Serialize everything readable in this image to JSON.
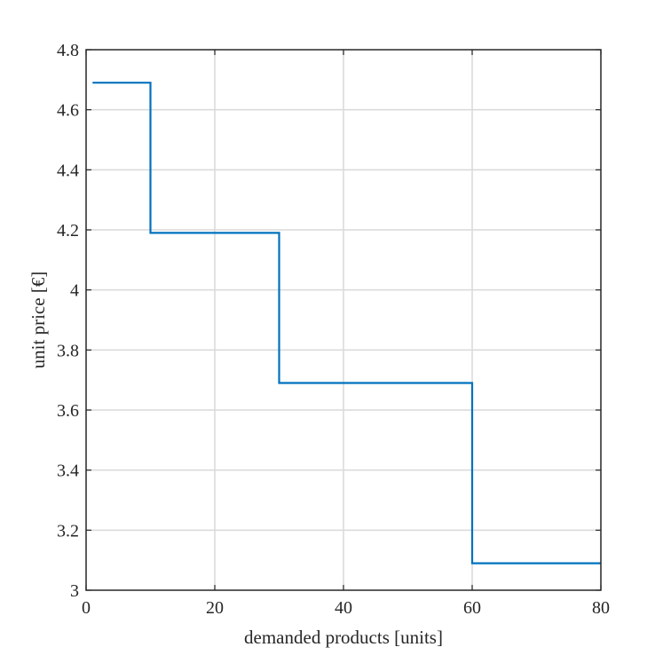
{
  "chart_data": {
    "type": "line",
    "step": "post",
    "title": "",
    "xlabel": "demanded products [units]",
    "ylabel": "unit price [€]",
    "xlim": [
      0,
      80
    ],
    "ylim": [
      3,
      4.8
    ],
    "xticks": [
      0,
      20,
      40,
      60,
      80
    ],
    "xtick_labels": [
      "0",
      "20",
      "40",
      "60",
      "80"
    ],
    "yticks": [
      3,
      3.2,
      3.4,
      3.6,
      3.8,
      4,
      4.2,
      4.4,
      4.6,
      4.8
    ],
    "ytick_labels": [
      "3",
      "3.2",
      "3.4",
      "3.6",
      "3.8",
      "4",
      "4.2",
      "4.4",
      "4.6",
      "4.8"
    ],
    "grid": true,
    "series": [
      {
        "color": "#0072BD",
        "x": [
          1,
          10,
          10,
          30,
          30,
          60,
          60,
          80
        ],
        "y": [
          4.69,
          4.69,
          4.19,
          4.19,
          3.69,
          3.69,
          3.09,
          3.09
        ]
      }
    ]
  }
}
